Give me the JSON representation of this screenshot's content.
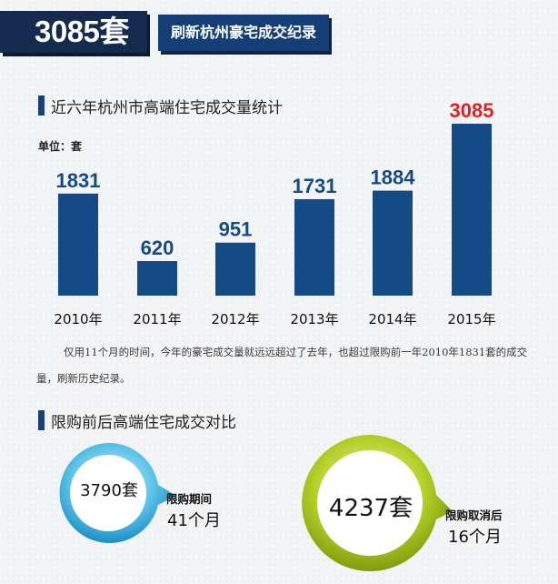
{
  "header": {
    "big_number": "3085套",
    "subtitle": "刷新杭州豪宅成交纪录"
  },
  "section1": {
    "title": "近六年杭州市高端住宅成交量统计"
  },
  "unit_label": "单位：套",
  "chart_data": {
    "type": "bar",
    "categories": [
      "2010年",
      "2011年",
      "2012年",
      "2013年",
      "2014年",
      "2015年"
    ],
    "values": [
      1831,
      620,
      951,
      1731,
      1884,
      3085
    ],
    "highlight_index": 5,
    "title": "近六年杭州市高端住宅成交量统计",
    "ylabel": "单位：套",
    "ylim": [
      0,
      3085
    ],
    "grid": false,
    "colors": {
      "bar": "#164a87",
      "label": "#164a87",
      "highlight_label": "#e41f1f"
    }
  },
  "note": "仅用11个月的时间，今年的豪宅成交量就远远超过了去年，也超过限购前一年2010年1831套的成交量，刷新历史纪录。",
  "section2": {
    "title": "限购前后高端住宅成交对比"
  },
  "compare": {
    "left": {
      "value": "3790套",
      "label": "限购期间",
      "period": "41个月",
      "color": "#28a4d6"
    },
    "right": {
      "value": "4237套",
      "label": "限购取消后",
      "period": "16个月",
      "color": "#a7c418"
    }
  }
}
